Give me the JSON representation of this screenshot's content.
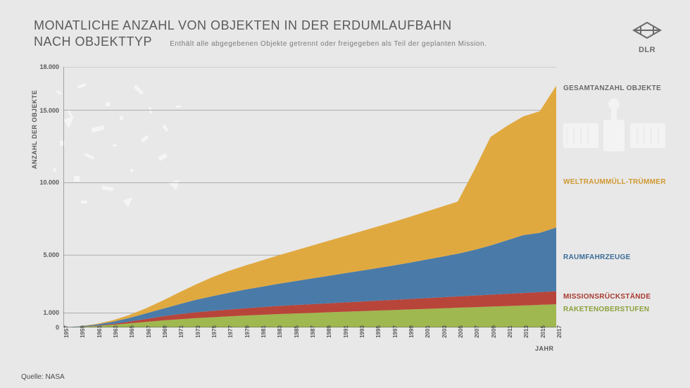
{
  "title_line1": "MONATLICHE ANZAHL VON OBJEKTEN IN DER ERDUMLAUFBAHN",
  "title_line2": "NACH OBJEKTTYP",
  "subtitle": "Enthält alle abgegebenen Objekte getrennt oder freigegeben als Teil der geplanten Mission.",
  "logo_text": "DLR",
  "ylabel": "ANZAHL DER OBJEKTE",
  "xlabel": "JAHR",
  "source": "Quelle: NASA",
  "chart": {
    "type": "area-stacked",
    "background_color": "#e8e8e8",
    "grid_color": "#8a8a8a",
    "xlim": [
      1957,
      2017
    ],
    "ylim": [
      0,
      18000
    ],
    "yticks": [
      0,
      1000,
      5000,
      10000,
      15000,
      18000
    ],
    "ytick_labels": [
      "0",
      "1.000",
      "5.000",
      "10.000",
      "15.000",
      "18.000"
    ],
    "xticks": [
      1957,
      1959,
      1961,
      1963,
      1965,
      1967,
      1969,
      1971,
      1973,
      1975,
      1977,
      1979,
      1981,
      1983,
      1985,
      1987,
      1989,
      1991,
      1993,
      1995,
      1997,
      1999,
      2001,
      2003,
      2005,
      2007,
      2009,
      2011,
      2013,
      2015,
      2017
    ],
    "years": [
      1957,
      1959,
      1961,
      1963,
      1965,
      1967,
      1969,
      1971,
      1973,
      1975,
      1977,
      1979,
      1981,
      1983,
      1985,
      1987,
      1989,
      1991,
      1993,
      1995,
      1997,
      1999,
      2001,
      2003,
      2005,
      2007,
      2009,
      2011,
      2013,
      2015,
      2017
    ],
    "series": [
      {
        "name": "RAKETENOBERSTUFEN",
        "color": "#9fb84f",
        "label_color": "#8aa03a",
        "label_y": 1200,
        "values": [
          0,
          40,
          100,
          180,
          280,
          380,
          480,
          560,
          640,
          700,
          760,
          820,
          870,
          920,
          960,
          1000,
          1040,
          1080,
          1120,
          1160,
          1200,
          1240,
          1280,
          1320,
          1360,
          1400,
          1440,
          1480,
          1520,
          1560,
          1600
        ]
      },
      {
        "name": "MISSIONSRÜCKSTÄNDE",
        "color": "#b8453a",
        "label_color": "#a83a30",
        "label_y": 2100,
        "values": [
          0,
          5,
          20,
          60,
          120,
          200,
          280,
          350,
          400,
          440,
          470,
          500,
          530,
          560,
          580,
          600,
          620,
          640,
          660,
          680,
          700,
          720,
          740,
          760,
          780,
          800,
          820,
          840,
          860,
          880,
          900
        ]
      },
      {
        "name": "RAUMFAHRZEUGE",
        "color": "#4a7ba8",
        "label_color": "#3a6b98",
        "label_y": 4800,
        "values": [
          5,
          30,
          80,
          150,
          250,
          380,
          520,
          680,
          850,
          1000,
          1150,
          1280,
          1400,
          1520,
          1640,
          1760,
          1880,
          2000,
          2120,
          2240,
          2360,
          2500,
          2650,
          2800,
          2950,
          3150,
          3400,
          3700,
          4000,
          4100,
          4400
        ]
      },
      {
        "name": "WELTRAUMMÜLL-TRÜMMER",
        "color": "#e0a940",
        "label_color": "#d09830",
        "label_y": 10000,
        "values": [
          0,
          10,
          40,
          100,
          200,
          350,
          550,
          800,
          1050,
          1300,
          1500,
          1650,
          1800,
          1950,
          2100,
          2250,
          2400,
          2550,
          2700,
          2850,
          3000,
          3150,
          3300,
          3450,
          3600,
          5500,
          7500,
          7900,
          8200,
          8400,
          9800
        ]
      },
      {
        "name": "GESAMTANZAHL OBJEKTE",
        "color": "#7a7a7a",
        "label_color": "#6a6a6a",
        "label_y": 16500,
        "values": [
          5,
          85,
          240,
          490,
          850,
          1310,
          1830,
          2390,
          2940,
          3440,
          3880,
          4250,
          4600,
          4950,
          5280,
          5610,
          5940,
          6270,
          6600,
          6930,
          7260,
          7610,
          7970,
          8330,
          8690,
          10850,
          13160,
          13920,
          14580,
          14940,
          16700
        ]
      }
    ]
  }
}
